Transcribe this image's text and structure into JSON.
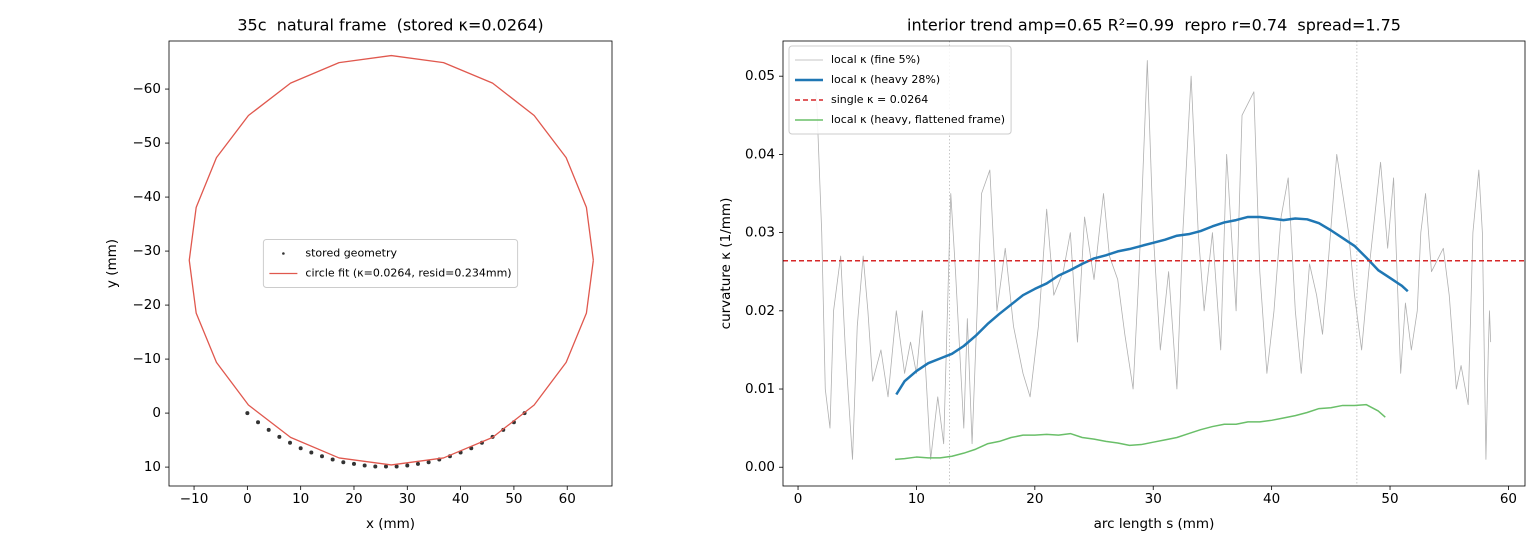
{
  "chart_data": [
    {
      "type": "scatter",
      "title": "35c  natural frame  (stored κ=0.0264)",
      "x_label": "x (mm)",
      "y_label": "y (mm)",
      "xlim": [
        -14.7,
        68.4
      ],
      "xticks": [
        {
          "value": -10,
          "label": "−10"
        },
        0,
        10,
        20,
        30,
        40,
        50,
        60
      ],
      "ylim": [
        -68.9,
        13.5
      ],
      "y_inverted": true,
      "yticks": [
        {
          "value": -60,
          "label": "−60"
        },
        {
          "value": -50,
          "label": "−50"
        },
        {
          "value": -40,
          "label": "−40"
        },
        {
          "value": -30,
          "label": "−30"
        },
        {
          "value": -20,
          "label": "−20"
        },
        {
          "value": -10,
          "label": "−10"
        },
        0,
        10
      ],
      "legend": "center",
      "series": [
        {
          "name": "stored geometry",
          "style": "points",
          "color": "#333333",
          "x": [
            0,
            2,
            4,
            6,
            8,
            10,
            12,
            14,
            16,
            18,
            20,
            22,
            24,
            26,
            28,
            30,
            32,
            34,
            36,
            38,
            40,
            42,
            44,
            46,
            48,
            50,
            52
          ],
          "values": [
            0.0,
            1.7,
            3.1,
            4.4,
            5.5,
            6.5,
            7.3,
            8.0,
            8.6,
            9.1,
            9.4,
            9.7,
            9.9,
            9.9,
            9.9,
            9.7,
            9.4,
            9.1,
            8.6,
            8.0,
            7.3,
            6.5,
            5.5,
            4.4,
            3.1,
            1.7,
            0.0
          ]
        },
        {
          "name": "circle fit (κ=0.0264, resid=0.234mm)",
          "style": "line",
          "color": "#e0584e",
          "x": [
            64.9,
            63.6,
            59.8,
            53.8,
            46.0,
            36.8,
            27.0,
            17.2,
            8.1,
            0.2,
            -5.8,
            -9.6,
            -10.9,
            -9.6,
            -5.8,
            0.2,
            8.1,
            17.2,
            27.0,
            36.8,
            46.0,
            53.8,
            59.8,
            63.6,
            64.9
          ],
          "values": [
            -28.3,
            -18.5,
            -9.4,
            -1.5,
            4.5,
            8.3,
            9.6,
            8.3,
            4.5,
            -1.5,
            -9.4,
            -18.5,
            -28.3,
            -38.1,
            -47.3,
            -55.1,
            -61.1,
            -64.9,
            -66.2,
            -64.9,
            -61.1,
            -55.1,
            -47.3,
            -38.1,
            -28.3
          ]
        }
      ]
    },
    {
      "type": "line",
      "title": "interior trend amp=0.65 R²=0.99  repro r=0.74  spread=1.75",
      "x_label": "arc length s (mm)",
      "y_label": "curvature κ (1/mm)",
      "xlim": [
        -1.27,
        61.4
      ],
      "xticks": [
        0,
        10,
        20,
        30,
        40,
        50,
        60
      ],
      "ylim": [
        -0.0024,
        0.0545
      ],
      "yticks": [
        {
          "value": 0,
          "label": "0.00"
        },
        0.01,
        0.02,
        0.03,
        0.04,
        0.05
      ],
      "legend": "upper left",
      "vlines": [
        12.8,
        47.2
      ],
      "series": [
        {
          "name": "local κ (fine 5%)",
          "style": "line",
          "color": "#b0b0b0",
          "width": 0.8,
          "x": [
            1.5,
            1.6,
            2.0,
            2.3,
            2.7,
            3.0,
            3.6,
            4.0,
            4.6,
            5.0,
            5.5,
            5.9,
            6.3,
            7.0,
            7.6,
            8.3,
            9.0,
            9.5,
            10.0,
            10.5,
            11.2,
            11.8,
            12.3,
            12.9,
            13.3,
            14.0,
            14.3,
            14.7,
            15.5,
            16.2,
            16.8,
            17.5,
            18.2,
            19.0,
            19.6,
            20.3,
            21.0,
            21.6,
            22.4,
            23.0,
            23.6,
            24.2,
            25.0,
            25.8,
            26.3,
            27.0,
            27.6,
            28.3,
            28.8,
            29.5,
            30.0,
            30.6,
            31.3,
            32.0,
            32.5,
            33.2,
            33.8,
            34.3,
            35.0,
            35.7,
            36.2,
            37.0,
            37.5,
            38.5,
            39.0,
            39.6,
            40.2,
            40.8,
            41.4,
            42.0,
            42.5,
            43.2,
            43.8,
            44.3,
            45.5,
            46.0,
            46.5,
            47.0,
            47.6,
            48.2,
            49.2,
            49.8,
            50.3,
            50.9,
            51.3,
            51.8,
            52.3,
            52.6,
            53.0,
            53.5,
            54.5,
            55.0,
            55.6,
            56.0,
            56.6,
            57.0,
            57.5,
            57.8,
            58.1,
            58.3,
            58.4,
            58.5
          ],
          "values": [
            0.048,
            0.046,
            0.03,
            0.01,
            0.005,
            0.02,
            0.027,
            0.015,
            0.001,
            0.018,
            0.027,
            0.02,
            0.011,
            0.015,
            0.009,
            0.02,
            0.012,
            0.016,
            0.012,
            0.02,
            0.001,
            0.009,
            0.003,
            0.035,
            0.025,
            0.005,
            0.019,
            0.003,
            0.035,
            0.038,
            0.02,
            0.028,
            0.018,
            0.012,
            0.009,
            0.018,
            0.033,
            0.022,
            0.025,
            0.03,
            0.016,
            0.032,
            0.024,
            0.035,
            0.027,
            0.024,
            0.017,
            0.01,
            0.025,
            0.052,
            0.03,
            0.015,
            0.025,
            0.01,
            0.03,
            0.05,
            0.03,
            0.02,
            0.03,
            0.015,
            0.04,
            0.02,
            0.045,
            0.048,
            0.025,
            0.012,
            0.02,
            0.032,
            0.037,
            0.02,
            0.012,
            0.026,
            0.022,
            0.017,
            0.04,
            0.035,
            0.03,
            0.022,
            0.015,
            0.025,
            0.039,
            0.028,
            0.037,
            0.012,
            0.021,
            0.015,
            0.02,
            0.03,
            0.035,
            0.025,
            0.028,
            0.022,
            0.01,
            0.013,
            0.008,
            0.03,
            0.038,
            0.03,
            0.001,
            0.015,
            0.02,
            0.016
          ]
        },
        {
          "name": "local κ (heavy 28%)",
          "style": "line",
          "color": "#1f77b4",
          "width": 2.5,
          "x": [
            8.3,
            9,
            10,
            11,
            12,
            13,
            14,
            15,
            16,
            17,
            18,
            19,
            20,
            21,
            22,
            23,
            24,
            25,
            26,
            27,
            28,
            29,
            30,
            31,
            32,
            33,
            34,
            35,
            36,
            37,
            38,
            39,
            40,
            41,
            42,
            43,
            44,
            45,
            46,
            47,
            48,
            49,
            50,
            51,
            51.5
          ],
          "values": [
            0.0093,
            0.011,
            0.0123,
            0.0133,
            0.0139,
            0.0145,
            0.0155,
            0.0168,
            0.0183,
            0.0196,
            0.0208,
            0.022,
            0.0228,
            0.0235,
            0.0245,
            0.0252,
            0.026,
            0.0267,
            0.0271,
            0.0276,
            0.0279,
            0.0283,
            0.0287,
            0.0291,
            0.0296,
            0.0298,
            0.0302,
            0.0308,
            0.0313,
            0.0316,
            0.032,
            0.032,
            0.0318,
            0.0316,
            0.0318,
            0.0317,
            0.0312,
            0.0303,
            0.0293,
            0.0283,
            0.0268,
            0.0252,
            0.0242,
            0.0232,
            0.0225
          ]
        },
        {
          "name": "single κ = 0.0264",
          "style": "hline",
          "color": "#d62728",
          "width": 1.5,
          "y": 0.0264
        },
        {
          "name": "local κ (heavy, flattened frame)",
          "style": "line",
          "color": "#6abf69",
          "width": 1.5,
          "x": [
            8.2,
            9,
            10,
            11,
            12,
            13,
            14,
            15,
            16,
            17,
            18,
            19,
            20,
            21,
            22,
            23,
            24,
            25,
            26,
            27,
            28,
            29,
            30,
            31,
            32,
            33,
            34,
            35,
            36,
            37,
            38,
            39,
            40,
            41,
            42,
            43,
            44,
            45,
            46,
            47,
            48,
            49,
            49.6
          ],
          "values": [
            0.001,
            0.0011,
            0.0013,
            0.0012,
            0.0012,
            0.0014,
            0.0018,
            0.0023,
            0.003,
            0.0033,
            0.0038,
            0.0041,
            0.0041,
            0.0042,
            0.0041,
            0.0043,
            0.0038,
            0.0036,
            0.0033,
            0.0031,
            0.0028,
            0.0029,
            0.0032,
            0.0035,
            0.0038,
            0.0043,
            0.0048,
            0.0052,
            0.0055,
            0.0055,
            0.0058,
            0.0058,
            0.006,
            0.0063,
            0.0066,
            0.007,
            0.0075,
            0.0076,
            0.0079,
            0.0079,
            0.008,
            0.0072,
            0.0064
          ]
        }
      ]
    }
  ]
}
